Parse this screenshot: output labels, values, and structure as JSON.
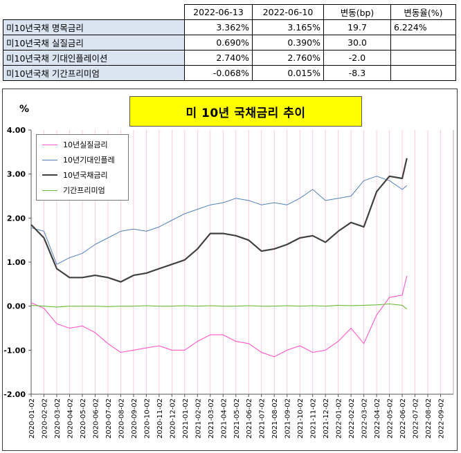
{
  "table": {
    "headers": [
      "",
      "2022-06-13",
      "2022-06-10",
      "변동(bp)",
      "변동율(%)"
    ],
    "rows": [
      {
        "label": "미10년국채 명목금리",
        "v1": "3.362%",
        "v2": "3.165%",
        "chg": "19.7",
        "pct": "6.224%"
      },
      {
        "label": "미10년국채 실질금리",
        "v1": "0.690%",
        "v2": "0.390%",
        "chg": "30.0",
        "pct": ""
      },
      {
        "label": "미10년국채 기대인플레이션",
        "v1": "2.740%",
        "v2": "2.760%",
        "chg": "-2.0",
        "pct": ""
      },
      {
        "label": "미10년국채 기간프리미엄",
        "v1": "-0.068%",
        "v2": "0.015%",
        "chg": "-8.3",
        "pct": ""
      }
    ]
  },
  "chart_data": {
    "type": "line",
    "title": "미 10년 국채금리 추이",
    "ylabel": "%",
    "ylim": [
      -2.0,
      4.0
    ],
    "yticks": [
      "4.00",
      "3.00",
      "2.00",
      "1.00",
      "0.00",
      "-1.00",
      "-2.00"
    ],
    "xticks": [
      "2020-01-02",
      "2020-02-02",
      "2020-03-02",
      "2020-04-02",
      "2020-05-02",
      "2020-06-02",
      "2020-07-02",
      "2020-08-02",
      "2020-09-02",
      "2020-10-02",
      "2020-11-02",
      "2020-12-02",
      "2021-01-02",
      "2021-02-02",
      "2021-03-02",
      "2021-04-02",
      "2021-05-02",
      "2021-06-02",
      "2021-07-02",
      "2021-08-02",
      "2021-09-02",
      "2021-10-02",
      "2021-11-02",
      "2021-12-02",
      "2022-01-02",
      "2022-02-02",
      "2022-03-02",
      "2022-04-02",
      "2022-05-02",
      "2022-06-02",
      "2022-07-02",
      "2022-08-02",
      "2022-09-02"
    ],
    "x_months": [
      "2020-01",
      "2020-02",
      "2020-03",
      "2020-04",
      "2020-05",
      "2020-06",
      "2020-07",
      "2020-08",
      "2020-09",
      "2020-10",
      "2020-11",
      "2020-12",
      "2021-01",
      "2021-02",
      "2021-03",
      "2021-04",
      "2021-05",
      "2021-06",
      "2021-07",
      "2021-08",
      "2021-09",
      "2021-10",
      "2021-11",
      "2021-12",
      "2022-01",
      "2022-02",
      "2022-03",
      "2022-04",
      "2022-05",
      "2022-06",
      "2022-06-13"
    ],
    "series": [
      {
        "name": "10년실질금리",
        "color": "#ff55cc",
        "width": 1.1,
        "values": [
          0.08,
          -0.05,
          -0.4,
          -0.5,
          -0.45,
          -0.6,
          -0.85,
          -1.05,
          -1.0,
          -0.95,
          -0.9,
          -1.0,
          -1.0,
          -0.8,
          -0.65,
          -0.65,
          -0.8,
          -0.85,
          -1.05,
          -1.15,
          -1.0,
          -0.9,
          -1.05,
          -1.0,
          -0.8,
          -0.5,
          -0.85,
          -0.2,
          0.2,
          0.25,
          0.69
        ]
      },
      {
        "name": "10년기대인플레",
        "color": "#4f81bd",
        "width": 1.0,
        "values": [
          1.78,
          1.7,
          0.95,
          1.1,
          1.2,
          1.4,
          1.55,
          1.7,
          1.75,
          1.7,
          1.8,
          1.95,
          2.1,
          2.2,
          2.3,
          2.35,
          2.45,
          2.4,
          2.3,
          2.35,
          2.3,
          2.45,
          2.65,
          2.4,
          2.45,
          2.5,
          2.85,
          2.95,
          2.85,
          2.65,
          2.74
        ]
      },
      {
        "name": "10년국채금리",
        "color": "#404040",
        "width": 2.2,
        "values": [
          1.85,
          1.55,
          0.85,
          0.65,
          0.65,
          0.7,
          0.65,
          0.55,
          0.7,
          0.75,
          0.85,
          0.95,
          1.05,
          1.3,
          1.65,
          1.65,
          1.6,
          1.5,
          1.25,
          1.3,
          1.4,
          1.55,
          1.6,
          1.45,
          1.7,
          1.9,
          1.8,
          2.6,
          2.95,
          2.9,
          3.36
        ]
      },
      {
        "name": "기간프리미엄",
        "color": "#66bb33",
        "width": 1.1,
        "values": [
          0.02,
          0.0,
          -0.02,
          0.0,
          0.0,
          0.0,
          -0.01,
          0.0,
          0.0,
          0.01,
          0.0,
          0.0,
          0.01,
          0.0,
          0.01,
          0.0,
          0.0,
          0.01,
          0.0,
          0.0,
          0.01,
          0.0,
          0.01,
          0.0,
          0.02,
          0.01,
          0.02,
          0.03,
          0.05,
          0.02,
          -0.068
        ]
      }
    ],
    "legend": "top-left",
    "grid": "vertical"
  }
}
